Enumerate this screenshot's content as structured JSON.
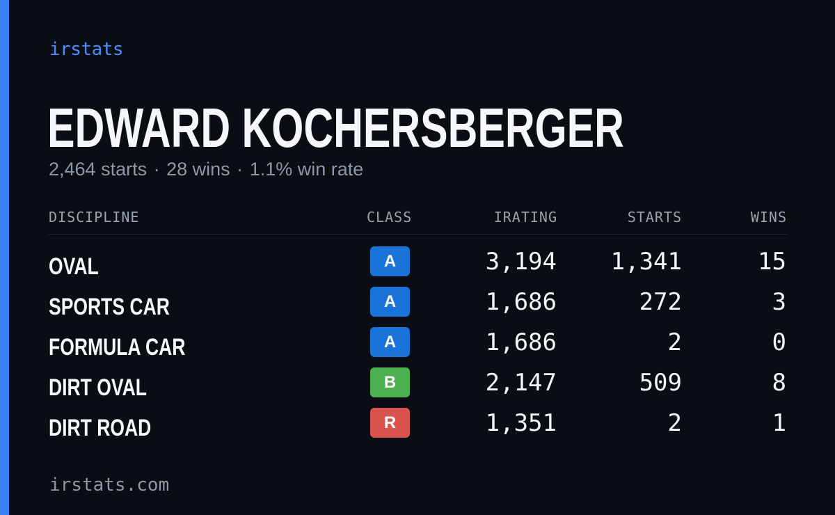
{
  "brand": "irstats",
  "driver": {
    "name": "EDWARD KOCHERSBERGER",
    "summary": {
      "starts": "2,464 starts",
      "wins": "28 wins",
      "win_rate": "1.1% win rate",
      "separator": "·"
    }
  },
  "table": {
    "headers": {
      "discipline": "DISCIPLINE",
      "class": "CLASS",
      "irating": "IRATING",
      "starts": "STARTS",
      "wins": "WINS"
    },
    "rows": [
      {
        "discipline": "OVAL",
        "class": "A",
        "class_color": "#1a73d9",
        "irating": "3,194",
        "starts": "1,341",
        "wins": "15"
      },
      {
        "discipline": "SPORTS CAR",
        "class": "A",
        "class_color": "#1a73d9",
        "irating": "1,686",
        "starts": "272",
        "wins": "3"
      },
      {
        "discipline": "FORMULA CAR",
        "class": "A",
        "class_color": "#1a73d9",
        "irating": "1,686",
        "starts": "2",
        "wins": "0"
      },
      {
        "discipline": "DIRT OVAL",
        "class": "B",
        "class_color": "#4caf50",
        "irating": "2,147",
        "starts": "509",
        "wins": "8"
      },
      {
        "discipline": "DIRT ROAD",
        "class": "R",
        "class_color": "#d9534f",
        "irating": "1,351",
        "starts": "2",
        "wins": "1"
      }
    ]
  },
  "footer": "irstats.com",
  "colors": {
    "background": "#0a0d14",
    "accent": "#3b82f6",
    "class_a": "#1a73d9",
    "class_b": "#4caf50",
    "class_r": "#d9534f"
  }
}
